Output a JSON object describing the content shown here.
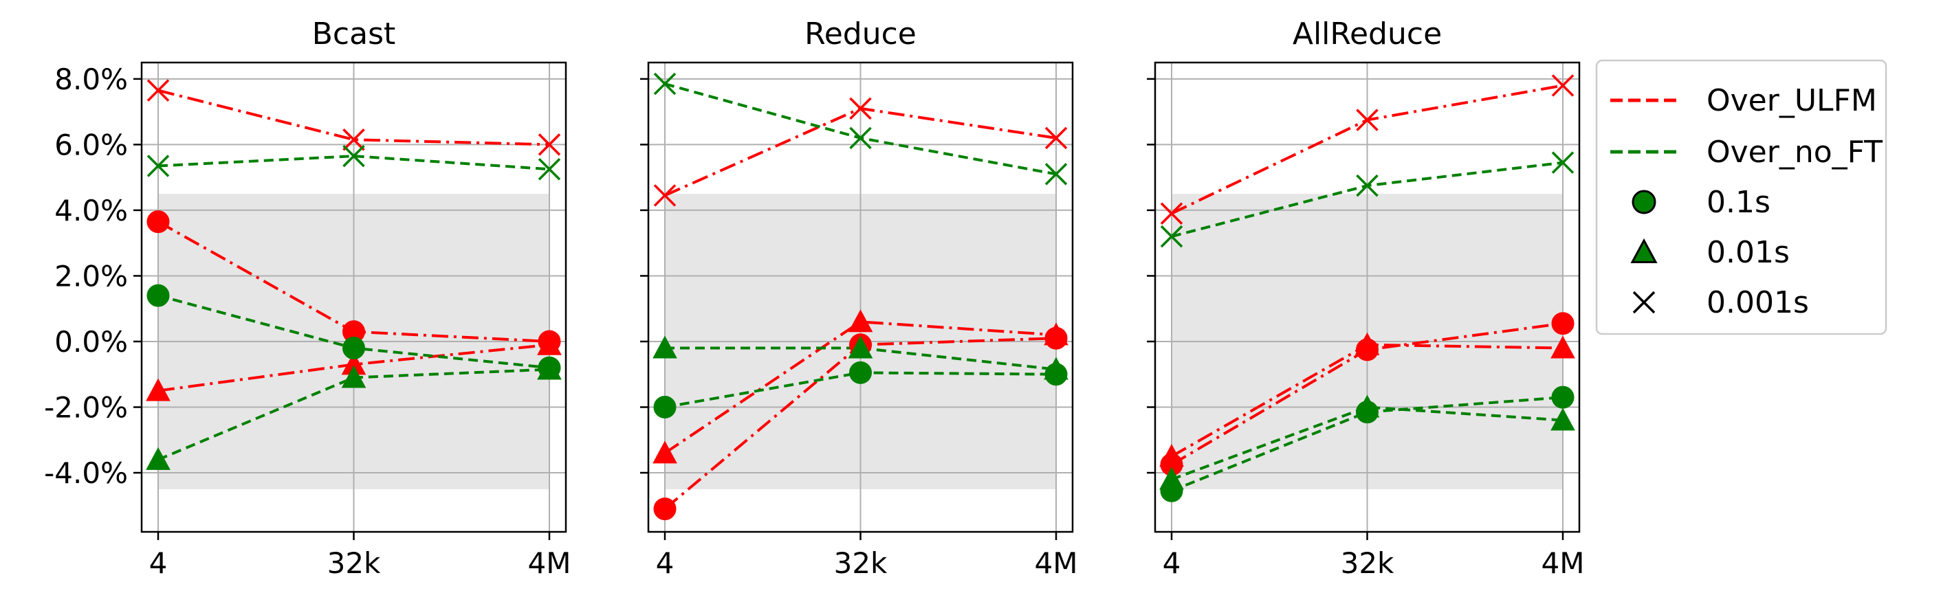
{
  "chart_data": {
    "type": "line",
    "categories": [
      "4",
      "32k",
      "4M"
    ],
    "ylim": [
      -5.8,
      8.5
    ],
    "yticks": [
      -4.0,
      -2.0,
      0.0,
      2.0,
      4.0,
      6.0,
      8.0
    ],
    "ytick_labels": [
      "-4.0%",
      "-2.0%",
      "0.0%",
      "2.0%",
      "4.0%",
      "6.0%",
      "8.0%"
    ],
    "grid": true,
    "shaded_band": [
      -4.5,
      4.5
    ],
    "colors": {
      "Over_ULFM": "#ff0000",
      "Over_no_FT": "#008000",
      "band": "#e6e6e6",
      "grid": "#b0b0b0"
    },
    "panels": [
      {
        "title": "Bcast",
        "series": [
          {
            "group": "Over_ULFM",
            "marker": "0.001s",
            "values": [
              7.65,
              6.15,
              6.0
            ]
          },
          {
            "group": "Over_ULFM",
            "marker": "0.1s",
            "values": [
              3.65,
              0.3,
              0.0
            ]
          },
          {
            "group": "Over_ULFM",
            "marker": "0.01s",
            "values": [
              -1.5,
              -0.7,
              -0.1
            ]
          },
          {
            "group": "Over_no_FT",
            "marker": "0.001s",
            "values": [
              5.35,
              5.65,
              5.25
            ]
          },
          {
            "group": "Over_no_FT",
            "marker": "0.1s",
            "values": [
              1.4,
              -0.2,
              -0.8
            ]
          },
          {
            "group": "Over_no_FT",
            "marker": "0.01s",
            "values": [
              -3.6,
              -1.1,
              -0.85
            ]
          }
        ]
      },
      {
        "title": "Reduce",
        "series": [
          {
            "group": "Over_ULFM",
            "marker": "0.001s",
            "values": [
              4.45,
              7.1,
              6.2
            ]
          },
          {
            "group": "Over_ULFM",
            "marker": "0.1s",
            "values": [
              -5.1,
              -0.1,
              0.1
            ]
          },
          {
            "group": "Over_ULFM",
            "marker": "0.01s",
            "values": [
              -3.4,
              0.6,
              0.2
            ]
          },
          {
            "group": "Over_no_FT",
            "marker": "0.001s",
            "values": [
              7.85,
              6.2,
              5.1
            ]
          },
          {
            "group": "Over_no_FT",
            "marker": "0.1s",
            "values": [
              -2.0,
              -0.95,
              -1.0
            ]
          },
          {
            "group": "Over_no_FT",
            "marker": "0.01s",
            "values": [
              -0.2,
              -0.2,
              -0.85
            ]
          }
        ]
      },
      {
        "title": "AllReduce",
        "series": [
          {
            "group": "Over_ULFM",
            "marker": "0.001s",
            "values": [
              3.9,
              6.75,
              7.8
            ]
          },
          {
            "group": "Over_ULFM",
            "marker": "0.1s",
            "values": [
              -3.75,
              -0.25,
              0.55
            ]
          },
          {
            "group": "Over_ULFM",
            "marker": "0.01s",
            "values": [
              -3.5,
              -0.1,
              -0.2
            ]
          },
          {
            "group": "Over_no_FT",
            "marker": "0.001s",
            "values": [
              3.2,
              4.75,
              5.45
            ]
          },
          {
            "group": "Over_no_FT",
            "marker": "0.1s",
            "values": [
              -4.55,
              -2.15,
              -1.7
            ]
          },
          {
            "group": "Over_no_FT",
            "marker": "0.01s",
            "values": [
              -4.2,
              -2.0,
              -2.4
            ]
          }
        ]
      }
    ],
    "legend": {
      "placement": "right",
      "line_entries": [
        "Over_ULFM",
        "Over_no_FT"
      ],
      "marker_entries": [
        {
          "label": "0.1s",
          "marker": "circle"
        },
        {
          "label": "0.01s",
          "marker": "triangle"
        },
        {
          "label": "0.001s",
          "marker": "x"
        }
      ]
    }
  }
}
